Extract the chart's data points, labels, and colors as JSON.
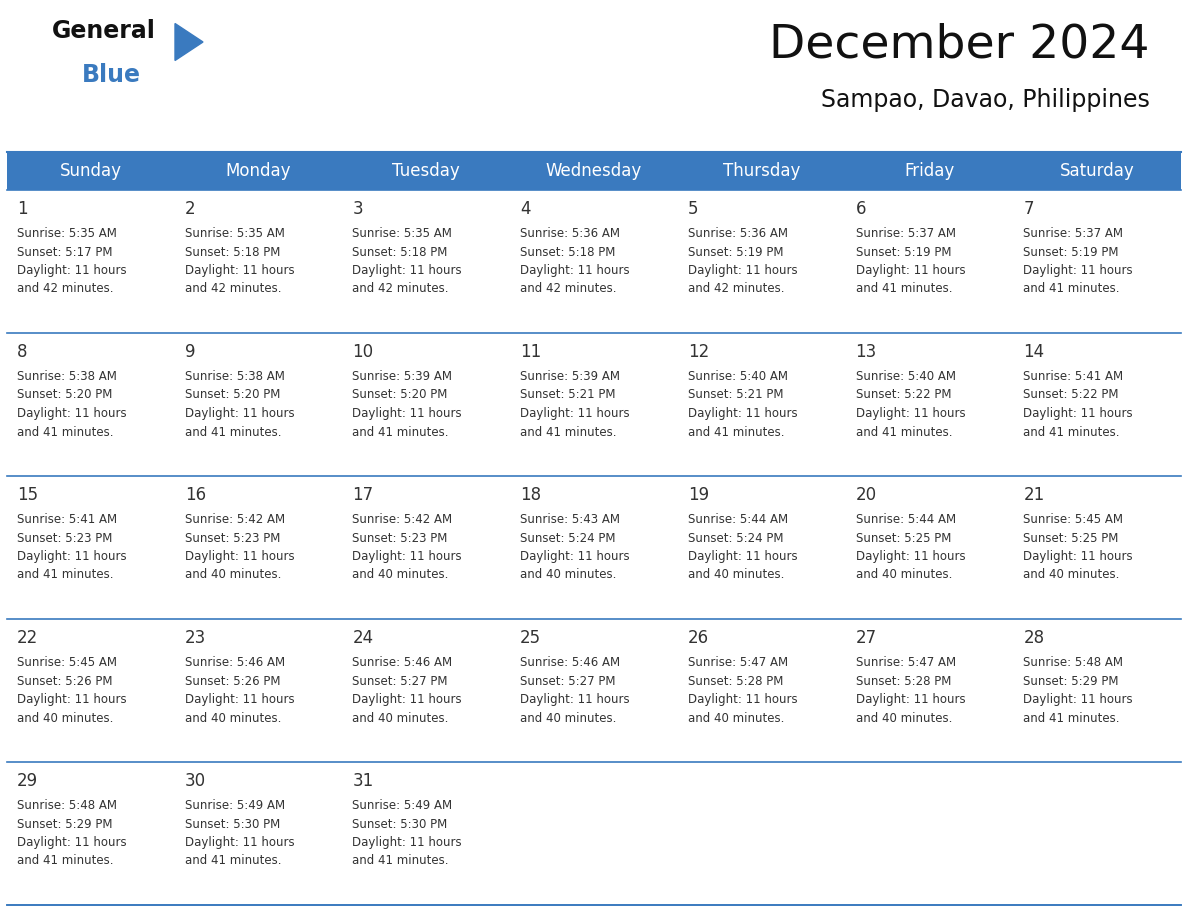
{
  "title": "December 2024",
  "subtitle": "Sampao, Davao, Philippines",
  "header_color": "#3a7abf",
  "header_text_color": "#ffffff",
  "days_of_week": [
    "Sunday",
    "Monday",
    "Tuesday",
    "Wednesday",
    "Thursday",
    "Friday",
    "Saturday"
  ],
  "calendar_data": [
    [
      {
        "day": 1,
        "sunrise": "5:35 AM",
        "sunset": "5:17 PM",
        "daylight_hours": 11,
        "daylight_minutes": 42
      },
      {
        "day": 2,
        "sunrise": "5:35 AM",
        "sunset": "5:18 PM",
        "daylight_hours": 11,
        "daylight_minutes": 42
      },
      {
        "day": 3,
        "sunrise": "5:35 AM",
        "sunset": "5:18 PM",
        "daylight_hours": 11,
        "daylight_minutes": 42
      },
      {
        "day": 4,
        "sunrise": "5:36 AM",
        "sunset": "5:18 PM",
        "daylight_hours": 11,
        "daylight_minutes": 42
      },
      {
        "day": 5,
        "sunrise": "5:36 AM",
        "sunset": "5:19 PM",
        "daylight_hours": 11,
        "daylight_minutes": 42
      },
      {
        "day": 6,
        "sunrise": "5:37 AM",
        "sunset": "5:19 PM",
        "daylight_hours": 11,
        "daylight_minutes": 41
      },
      {
        "day": 7,
        "sunrise": "5:37 AM",
        "sunset": "5:19 PM",
        "daylight_hours": 11,
        "daylight_minutes": 41
      }
    ],
    [
      {
        "day": 8,
        "sunrise": "5:38 AM",
        "sunset": "5:20 PM",
        "daylight_hours": 11,
        "daylight_minutes": 41
      },
      {
        "day": 9,
        "sunrise": "5:38 AM",
        "sunset": "5:20 PM",
        "daylight_hours": 11,
        "daylight_minutes": 41
      },
      {
        "day": 10,
        "sunrise": "5:39 AM",
        "sunset": "5:20 PM",
        "daylight_hours": 11,
        "daylight_minutes": 41
      },
      {
        "day": 11,
        "sunrise": "5:39 AM",
        "sunset": "5:21 PM",
        "daylight_hours": 11,
        "daylight_minutes": 41
      },
      {
        "day": 12,
        "sunrise": "5:40 AM",
        "sunset": "5:21 PM",
        "daylight_hours": 11,
        "daylight_minutes": 41
      },
      {
        "day": 13,
        "sunrise": "5:40 AM",
        "sunset": "5:22 PM",
        "daylight_hours": 11,
        "daylight_minutes": 41
      },
      {
        "day": 14,
        "sunrise": "5:41 AM",
        "sunset": "5:22 PM",
        "daylight_hours": 11,
        "daylight_minutes": 41
      }
    ],
    [
      {
        "day": 15,
        "sunrise": "5:41 AM",
        "sunset": "5:23 PM",
        "daylight_hours": 11,
        "daylight_minutes": 41
      },
      {
        "day": 16,
        "sunrise": "5:42 AM",
        "sunset": "5:23 PM",
        "daylight_hours": 11,
        "daylight_minutes": 40
      },
      {
        "day": 17,
        "sunrise": "5:42 AM",
        "sunset": "5:23 PM",
        "daylight_hours": 11,
        "daylight_minutes": 40
      },
      {
        "day": 18,
        "sunrise": "5:43 AM",
        "sunset": "5:24 PM",
        "daylight_hours": 11,
        "daylight_minutes": 40
      },
      {
        "day": 19,
        "sunrise": "5:44 AM",
        "sunset": "5:24 PM",
        "daylight_hours": 11,
        "daylight_minutes": 40
      },
      {
        "day": 20,
        "sunrise": "5:44 AM",
        "sunset": "5:25 PM",
        "daylight_hours": 11,
        "daylight_minutes": 40
      },
      {
        "day": 21,
        "sunrise": "5:45 AM",
        "sunset": "5:25 PM",
        "daylight_hours": 11,
        "daylight_minutes": 40
      }
    ],
    [
      {
        "day": 22,
        "sunrise": "5:45 AM",
        "sunset": "5:26 PM",
        "daylight_hours": 11,
        "daylight_minutes": 40
      },
      {
        "day": 23,
        "sunrise": "5:46 AM",
        "sunset": "5:26 PM",
        "daylight_hours": 11,
        "daylight_minutes": 40
      },
      {
        "day": 24,
        "sunrise": "5:46 AM",
        "sunset": "5:27 PM",
        "daylight_hours": 11,
        "daylight_minutes": 40
      },
      {
        "day": 25,
        "sunrise": "5:46 AM",
        "sunset": "5:27 PM",
        "daylight_hours": 11,
        "daylight_minutes": 40
      },
      {
        "day": 26,
        "sunrise": "5:47 AM",
        "sunset": "5:28 PM",
        "daylight_hours": 11,
        "daylight_minutes": 40
      },
      {
        "day": 27,
        "sunrise": "5:47 AM",
        "sunset": "5:28 PM",
        "daylight_hours": 11,
        "daylight_minutes": 40
      },
      {
        "day": 28,
        "sunrise": "5:48 AM",
        "sunset": "5:29 PM",
        "daylight_hours": 11,
        "daylight_minutes": 41
      }
    ],
    [
      {
        "day": 29,
        "sunrise": "5:48 AM",
        "sunset": "5:29 PM",
        "daylight_hours": 11,
        "daylight_minutes": 41
      },
      {
        "day": 30,
        "sunrise": "5:49 AM",
        "sunset": "5:30 PM",
        "daylight_hours": 11,
        "daylight_minutes": 41
      },
      {
        "day": 31,
        "sunrise": "5:49 AM",
        "sunset": "5:30 PM",
        "daylight_hours": 11,
        "daylight_minutes": 41
      },
      null,
      null,
      null,
      null
    ]
  ],
  "logo_triangle_color": "#3a7abf",
  "text_color": "#333333",
  "border_color": "#3a7abf",
  "fig_width": 11.88,
  "fig_height": 9.18,
  "dpi": 100
}
